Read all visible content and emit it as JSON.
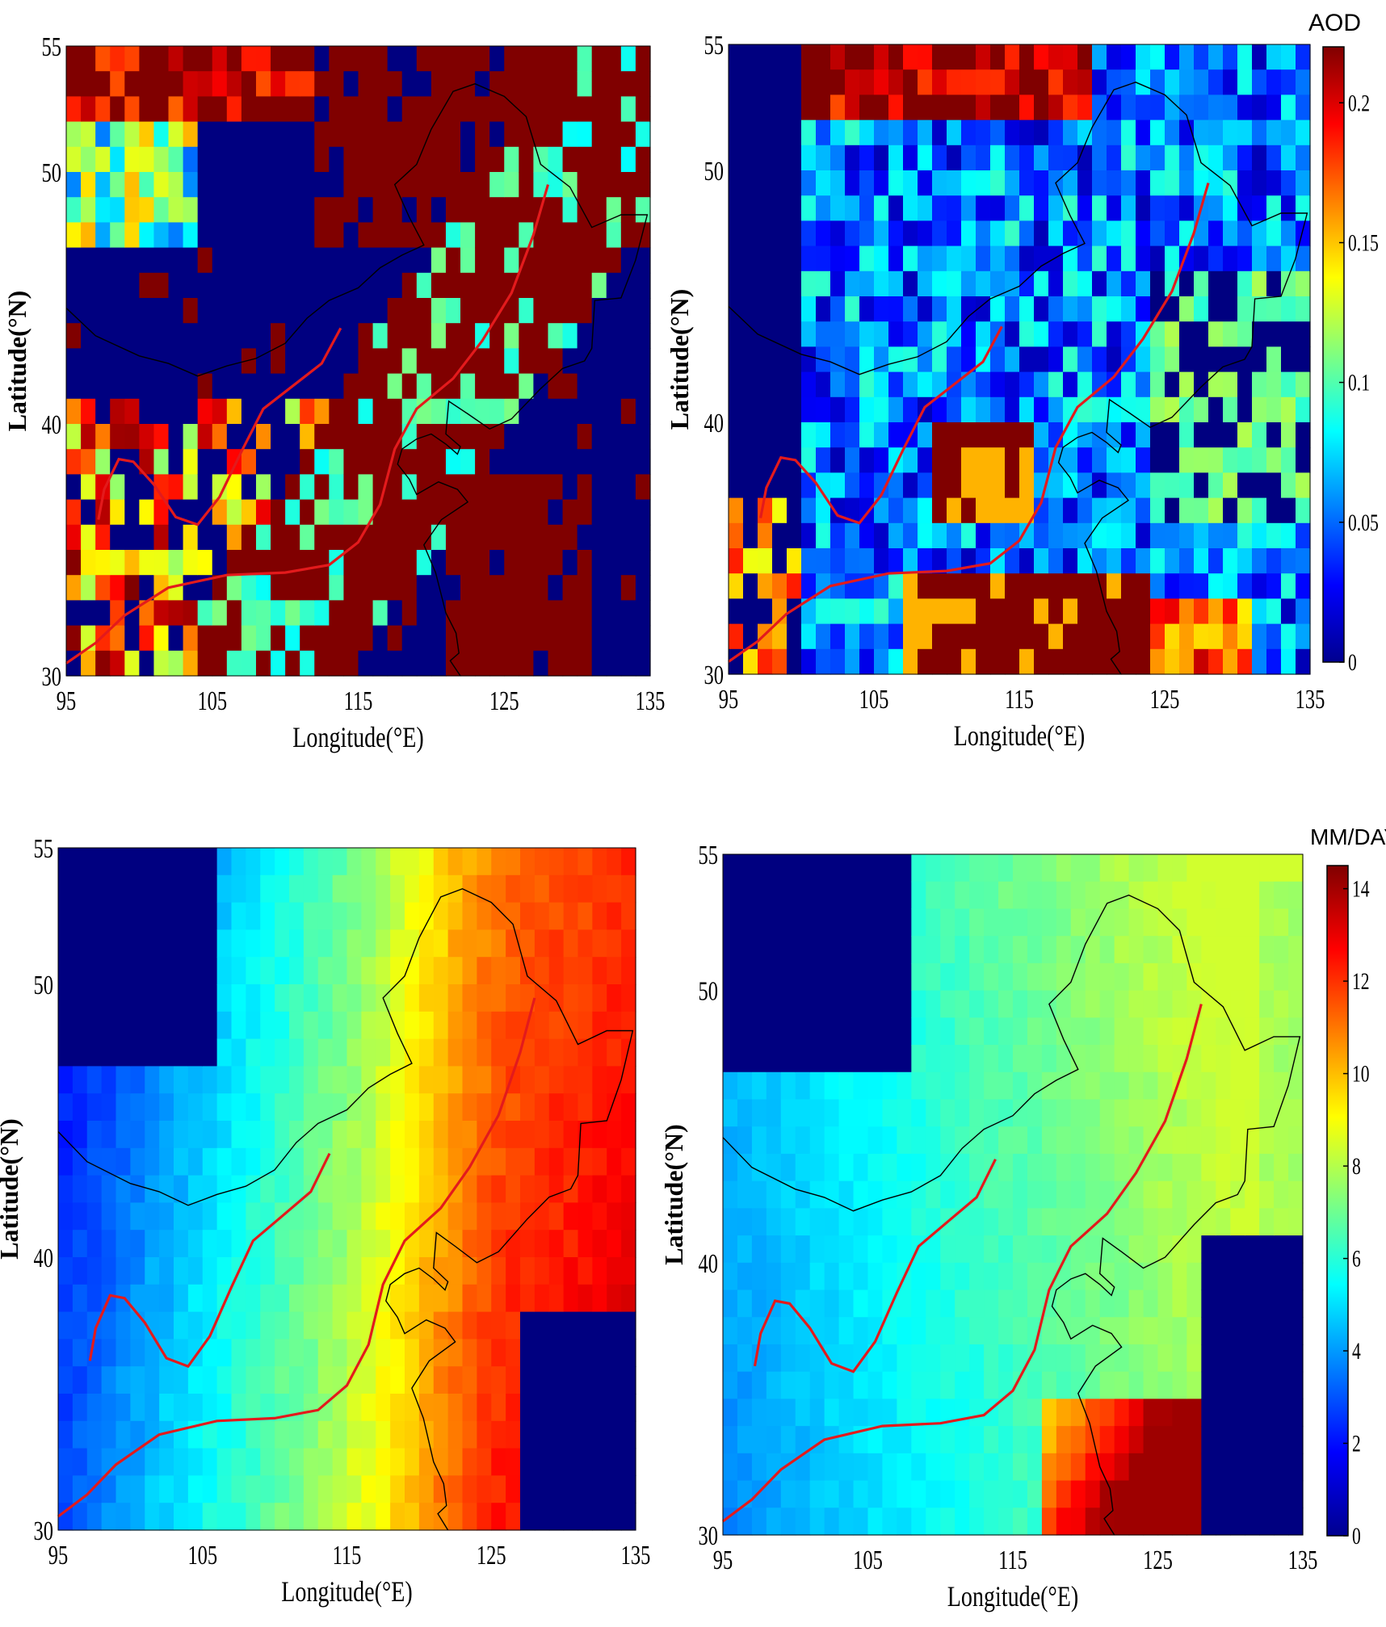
{
  "colors": {
    "boundary": "#000000",
    "monsoon_line": "#e31a1c",
    "jet_low": "#00008f",
    "jet_high": "#800000"
  },
  "colorbars": {
    "aod": {
      "label": "AOD",
      "min": 0,
      "max": 0.22,
      "ticks": [
        "0",
        "0.05",
        "0.1",
        "0.15",
        "0.2"
      ]
    },
    "precip": {
      "label": "MM/DAY",
      "min": 0,
      "max": 14.5,
      "ticks": [
        "0",
        "2",
        "4",
        "6",
        "8",
        "10",
        "12",
        "14"
      ]
    }
  },
  "chart_data": [
    {
      "type": "heatmap",
      "panel": "top-left",
      "variable": "AOD",
      "xlabel": "Longitude(°E)",
      "ylabel": "Latitude(°N)",
      "xlim": [
        95,
        135
      ],
      "ylim": [
        30,
        55
      ],
      "xticks": [
        "95",
        "105",
        "115",
        "125",
        "135"
      ],
      "yticks": [
        "30",
        "40",
        "50",
        "55"
      ],
      "zrange": [
        0,
        0.22
      ]
    },
    {
      "type": "heatmap",
      "panel": "top-right",
      "variable": "AOD",
      "xlabel": "Longitude(°E)",
      "ylabel": "Latitude(°N)",
      "xlim": [
        95,
        135
      ],
      "ylim": [
        30,
        55
      ],
      "xticks": [
        "95",
        "105",
        "115",
        "125",
        "135"
      ],
      "yticks": [
        "30",
        "40",
        "50",
        "55"
      ],
      "zrange": [
        0,
        0.22
      ]
    },
    {
      "type": "heatmap",
      "panel": "bottom-left",
      "variable": "MM/DAY",
      "xlabel": "Longitude(°E)",
      "ylabel": "Latitude(°N)",
      "xlim": [
        95,
        135
      ],
      "ylim": [
        30,
        55
      ],
      "xticks": [
        "95",
        "105",
        "115",
        "125",
        "135"
      ],
      "yticks": [
        "30",
        "40",
        "50",
        "55"
      ],
      "zrange": [
        0,
        14.5
      ]
    },
    {
      "type": "heatmap",
      "panel": "bottom-right",
      "variable": "MM/DAY",
      "xlabel": "Longitude(°E)",
      "ylabel": "Latitude(°N)",
      "xlim": [
        95,
        135
      ],
      "ylim": [
        30,
        55
      ],
      "xticks": [
        "95",
        "105",
        "115",
        "125",
        "135"
      ],
      "yticks": [
        "30",
        "40",
        "50",
        "55"
      ],
      "zrange": [
        0,
        14.5
      ]
    }
  ]
}
